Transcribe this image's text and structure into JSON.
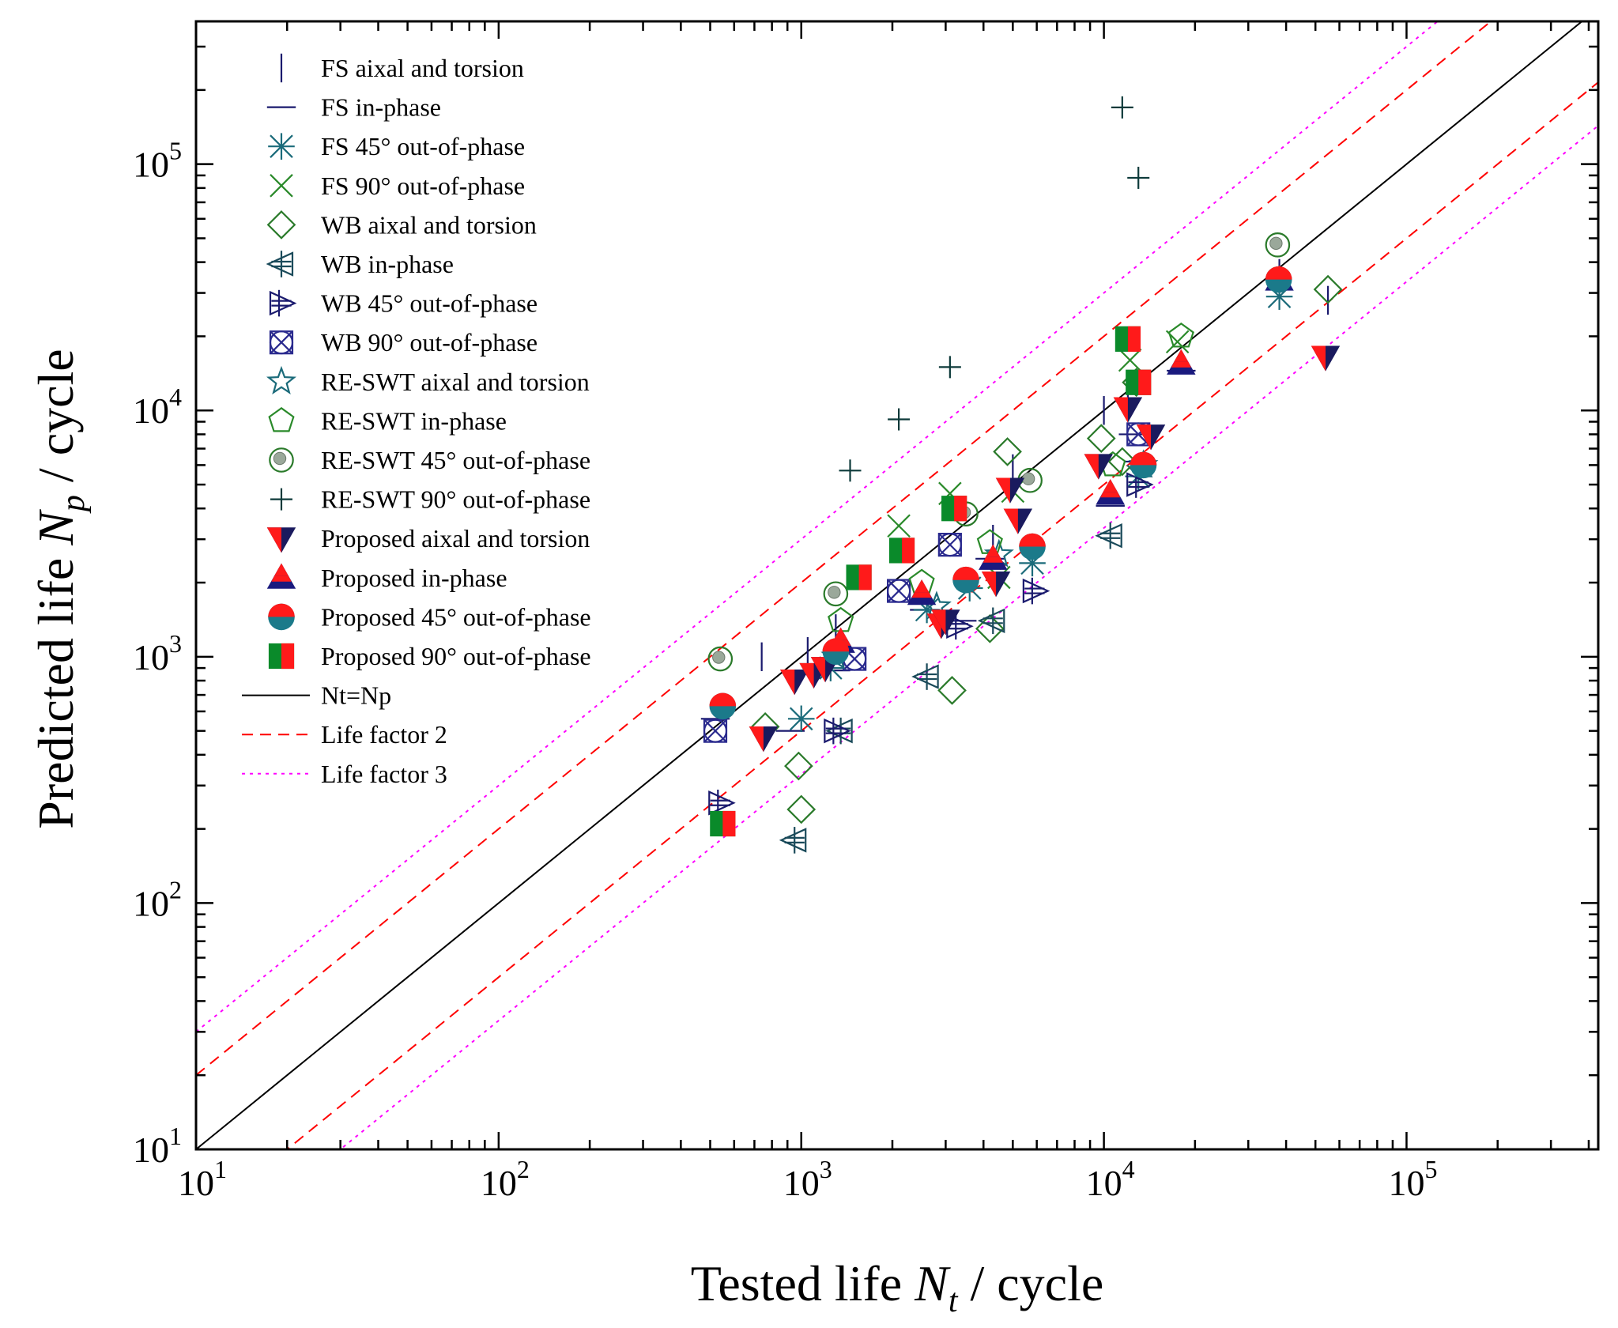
{
  "chart_data": {
    "type": "scatter",
    "title": "",
    "x_axis": {
      "label_prefix": "Tested life",
      "label_var": "N",
      "label_sub": "t",
      "label_suffix": "/ cycle",
      "scale": "log",
      "range": [
        10,
        430000
      ],
      "tick_labels": [
        {
          "value": 10,
          "base": "10",
          "exp": "1"
        },
        {
          "value": 100,
          "base": "10",
          "exp": "2"
        },
        {
          "value": 1000,
          "base": "10",
          "exp": "3"
        },
        {
          "value": 10000,
          "base": "10",
          "exp": "4"
        },
        {
          "value": 100000,
          "base": "10",
          "exp": "5"
        }
      ]
    },
    "y_axis": {
      "label_prefix": "Predicted life",
      "label_var": "N",
      "label_sub": "p",
      "label_suffix": "/ cycle",
      "scale": "log",
      "range": [
        10,
        380000
      ],
      "tick_labels": [
        {
          "value": 10,
          "base": "10",
          "exp": "1"
        },
        {
          "value": 100,
          "base": "10",
          "exp": "2"
        },
        {
          "value": 1000,
          "base": "10",
          "exp": "3"
        },
        {
          "value": 10000,
          "base": "10",
          "exp": "4"
        },
        {
          "value": 100000,
          "base": "10",
          "exp": "5"
        }
      ]
    },
    "reference_lines": [
      {
        "name": "Nt=Np",
        "factor": 1,
        "color": "#000000",
        "dash": "solid"
      },
      {
        "name": "Life factor 2",
        "factor": 2,
        "color": "#ff0000",
        "dash": "dashed"
      },
      {
        "name": "Life factor 3",
        "factor": 3,
        "color": "#ff00ff",
        "dash": "dotted"
      }
    ],
    "legend_position": "top-left",
    "series": [
      {
        "name": "FS aixal and torsion",
        "marker": "vline",
        "color": "#1a1a6e",
        "points": [
          [
            740,
            1000
          ],
          [
            1050,
            1050
          ],
          [
            1300,
            1300
          ],
          [
            4300,
            3000
          ],
          [
            5000,
            5800
          ],
          [
            10000,
            10000
          ],
          [
            12000,
            10500
          ],
          [
            38000,
            36000
          ],
          [
            55000,
            28000
          ]
        ]
      },
      {
        "name": "FS in-phase",
        "marker": "hline",
        "color": "#1a1a6e",
        "points": [
          [
            520,
            560
          ],
          [
            920,
            500
          ],
          [
            1300,
            880
          ],
          [
            2550,
            1550
          ],
          [
            3400,
            1400
          ],
          [
            4200,
            2500
          ],
          [
            10500,
            4100
          ],
          [
            12500,
            8000
          ],
          [
            13000,
            6200
          ],
          [
            18000,
            14500
          ]
        ]
      },
      {
        "name": "FS 45° out-of-phase",
        "marker": "asterisk",
        "color": "#1b6b7a",
        "points": [
          [
            1000,
            560
          ],
          [
            1250,
            900
          ],
          [
            2600,
            1550
          ],
          [
            3600,
            1900
          ],
          [
            5800,
            2400
          ],
          [
            13000,
            5400
          ],
          [
            38000,
            29000
          ]
        ]
      },
      {
        "name": "FS 90° out-of-phase",
        "marker": "x",
        "color": "#2a8a2a",
        "points": [
          [
            2100,
            3400
          ],
          [
            3100,
            4600
          ],
          [
            4500,
            2100
          ],
          [
            5000,
            4700
          ],
          [
            12200,
            16000
          ],
          [
            17500,
            19000
          ]
        ]
      },
      {
        "name": "WB aixal and torsion",
        "marker": "diamond",
        "color": "#2a7a2a",
        "points": [
          [
            980,
            360
          ],
          [
            1000,
            240
          ],
          [
            3150,
            730
          ],
          [
            4200,
            1300
          ],
          [
            4800,
            6800
          ],
          [
            9800,
            7700
          ],
          [
            11500,
            6200
          ],
          [
            12800,
            13000
          ],
          [
            55000,
            31000
          ],
          [
            760,
            520
          ]
        ]
      },
      {
        "name": "WB in-phase",
        "marker": "tri-left",
        "color": "#1a4a5a",
        "points": [
          [
            950,
            180
          ],
          [
            1350,
            500
          ],
          [
            2600,
            830
          ],
          [
            4300,
            1400
          ],
          [
            10500,
            3100
          ]
        ]
      },
      {
        "name": "WB 45° out-of-phase",
        "marker": "tri-right",
        "color": "#1a1a6e",
        "points": [
          [
            540,
            255
          ],
          [
            1300,
            500
          ],
          [
            3300,
            1330
          ],
          [
            5900,
            1850
          ],
          [
            13000,
            5000
          ]
        ]
      },
      {
        "name": "WB 90° out-of-phase",
        "marker": "box-x",
        "color": "#2a2a8e",
        "points": [
          [
            520,
            500
          ],
          [
            1500,
            980
          ],
          [
            2100,
            1850
          ],
          [
            3100,
            2850
          ],
          [
            13000,
            8000
          ]
        ]
      },
      {
        "name": "RE-SWT aixal and torsion",
        "marker": "star",
        "color": "#1b6b7a",
        "points": [
          [
            1300,
            1000
          ],
          [
            2800,
            1600
          ],
          [
            4500,
            2600
          ],
          [
            13500,
            6000
          ]
        ]
      },
      {
        "name": "RE-SWT in-phase",
        "marker": "pentagon",
        "color": "#2a8a2a",
        "points": [
          [
            1350,
            1400
          ],
          [
            2500,
            2000
          ],
          [
            4200,
            2900
          ],
          [
            10700,
            6000
          ],
          [
            18000,
            20000
          ]
        ]
      },
      {
        "name": "RE-SWT 45° out-of-phase",
        "marker": "circle-dot",
        "color": "#2a7a2a",
        "points": [
          [
            540,
            980
          ],
          [
            1300,
            1800
          ],
          [
            3500,
            3800
          ],
          [
            5700,
            5200
          ],
          [
            37500,
            47000
          ]
        ]
      },
      {
        "name": "RE-SWT 90° out-of-phase",
        "marker": "plus",
        "color": "#0d3a3a",
        "points": [
          [
            1450,
            5700
          ],
          [
            2100,
            9200
          ],
          [
            3100,
            15000
          ],
          [
            11500,
            170000
          ],
          [
            13000,
            88000
          ]
        ]
      },
      {
        "name": "Proposed aixal and torsion",
        "marker": "tri-down-fill",
        "colors": [
          "#ff1a1a",
          "#1a1a5e"
        ],
        "points": [
          [
            750,
            470
          ],
          [
            950,
            800
          ],
          [
            1100,
            850
          ],
          [
            1200,
            900
          ],
          [
            2900,
            1350
          ],
          [
            3000,
            1400
          ],
          [
            4400,
            2000
          ],
          [
            4900,
            4800
          ],
          [
            5200,
            3600
          ],
          [
            9600,
            6000
          ],
          [
            12000,
            10200
          ],
          [
            14300,
            7900
          ],
          [
            54000,
            16500
          ]
        ]
      },
      {
        "name": "Proposed in-phase",
        "marker": "tri-up-fill",
        "colors": [
          "#ff1a1a",
          "#1a1a7e"
        ],
        "points": [
          [
            1350,
            1150
          ],
          [
            2500,
            1800
          ],
          [
            4300,
            2500
          ],
          [
            10500,
            4600
          ],
          [
            18000,
            15500
          ],
          [
            38000,
            34000
          ]
        ]
      },
      {
        "name": "Proposed 45° out-of-phase",
        "marker": "circle-fill",
        "colors": [
          "#ff1a1a",
          "#1b7a8a"
        ],
        "points": [
          [
            550,
            630
          ],
          [
            1300,
            1050
          ],
          [
            3500,
            2050
          ],
          [
            5800,
            2800
          ],
          [
            13500,
            6000
          ],
          [
            37800,
            34000
          ]
        ]
      },
      {
        "name": "Proposed 90° out-of-phase",
        "marker": "square-fill",
        "colors": [
          "#0a8a2a",
          "#ff1a1a"
        ],
        "points": [
          [
            550,
            210
          ],
          [
            1550,
            2100
          ],
          [
            2150,
            2700
          ],
          [
            3200,
            4000
          ],
          [
            12000,
            19500
          ],
          [
            13000,
            13000
          ]
        ]
      }
    ]
  }
}
